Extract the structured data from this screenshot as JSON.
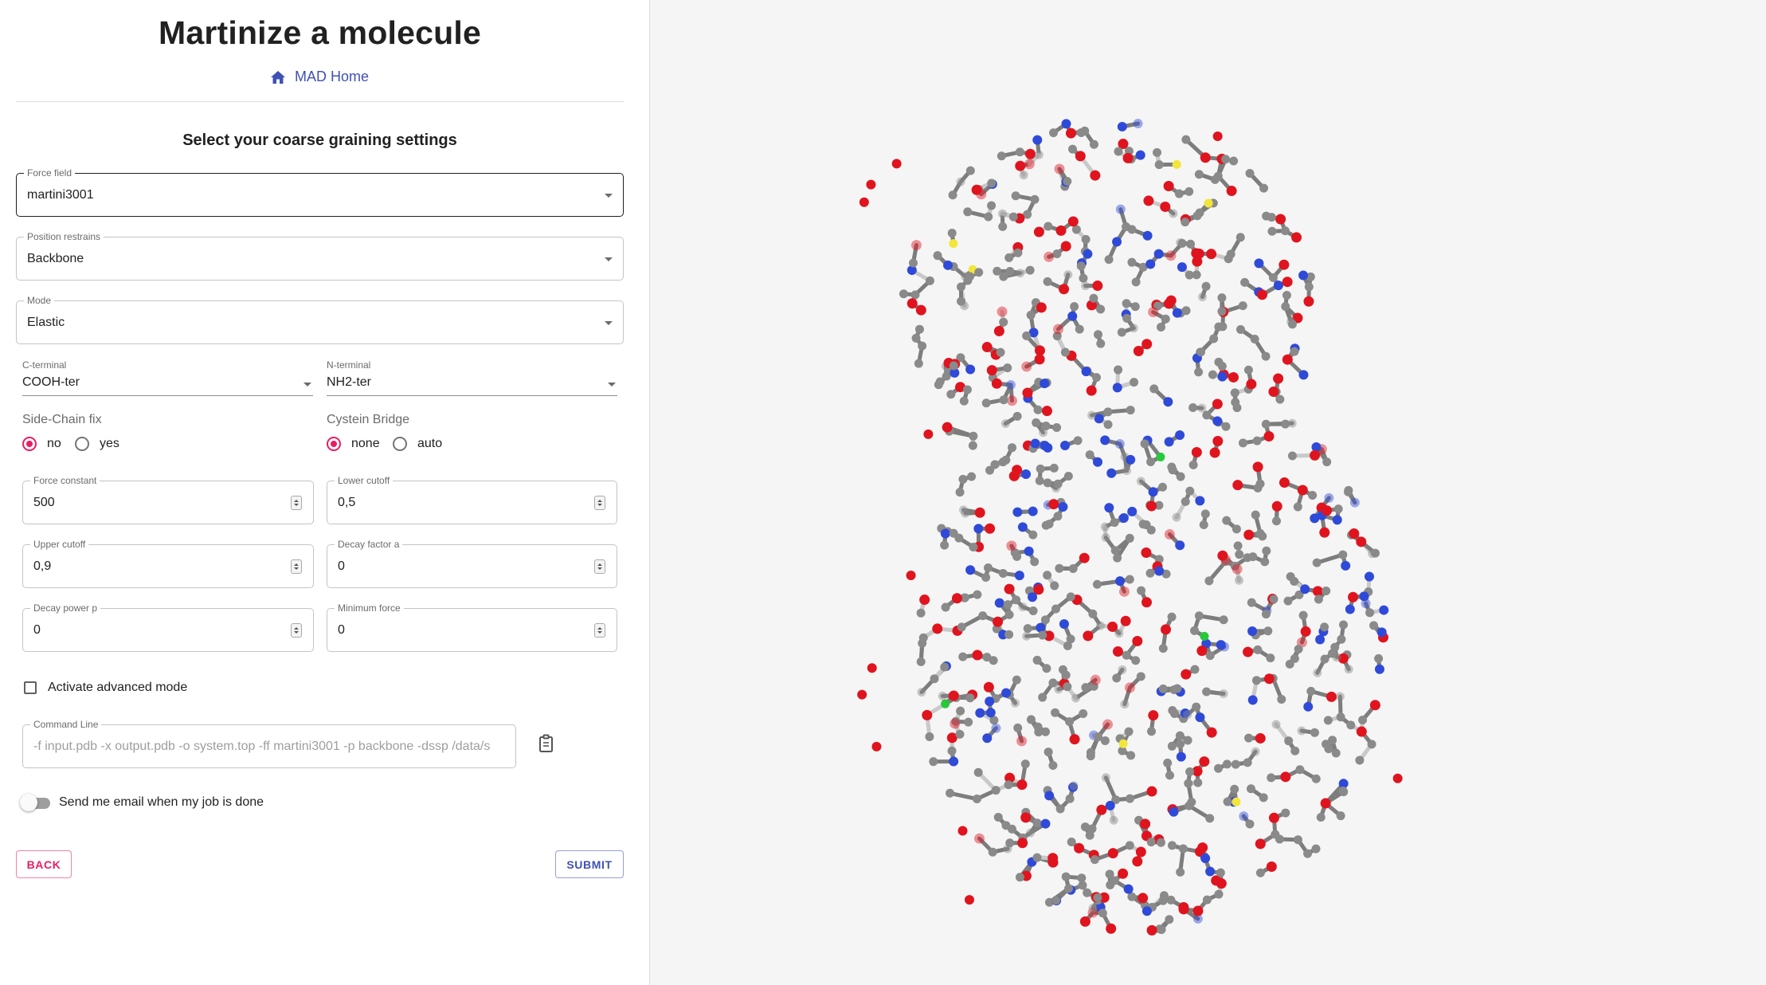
{
  "page": {
    "title": "Martinize a molecule",
    "home_link": "MAD Home",
    "subtitle": "Select your coarse graining settings"
  },
  "form": {
    "force_field": {
      "label": "Force field",
      "value": "martini3001"
    },
    "position_restrains": {
      "label": "Position restrains",
      "value": "Backbone"
    },
    "mode": {
      "label": "Mode",
      "value": "Elastic"
    },
    "c_terminal": {
      "label": "C-terminal",
      "value": "COOH-ter"
    },
    "n_terminal": {
      "label": "N-terminal",
      "value": "NH2-ter"
    },
    "side_chain_fix": {
      "label": "Side-Chain fix",
      "options": [
        "no",
        "yes"
      ],
      "selected": "no"
    },
    "cystein_bridge": {
      "label": "Cystein Bridge",
      "options": [
        "none",
        "auto"
      ],
      "selected": "none"
    },
    "force_constant": {
      "label": "Force constant",
      "value": "500"
    },
    "lower_cutoff": {
      "label": "Lower cutoff",
      "value": "0,5"
    },
    "upper_cutoff": {
      "label": "Upper cutoff",
      "value": "0,9"
    },
    "decay_factor": {
      "label": "Decay factor a",
      "value": "0"
    },
    "decay_power": {
      "label": "Decay power p",
      "value": "0"
    },
    "minimum_force": {
      "label": "Minimum force",
      "value": "0"
    },
    "advanced_mode": {
      "label": "Activate advanced mode",
      "checked": false
    },
    "command_line": {
      "label": "Command Line",
      "value": "-f input.pdb -x output.pdb -o system.top -ff martini3001 -p backbone -dssp /data/s"
    },
    "email_switch": {
      "label": "Send me email when my job is done",
      "on": false
    }
  },
  "buttons": {
    "back": "Back",
    "submit": "Submit"
  },
  "icons": {
    "home": "home-icon",
    "copy": "clipboard-copy-icon"
  },
  "colors": {
    "accent_primary": "#3f51b5",
    "accent_secondary": "#e91e63",
    "viewer_background": "#f5f5f5",
    "atom_carbon": "#8a8a8a",
    "atom_oxygen": "#e0141e",
    "atom_nitrogen": "#2f4ad8",
    "atom_sulfur": "#f2e63a",
    "atom_other": "#27c83a"
  }
}
